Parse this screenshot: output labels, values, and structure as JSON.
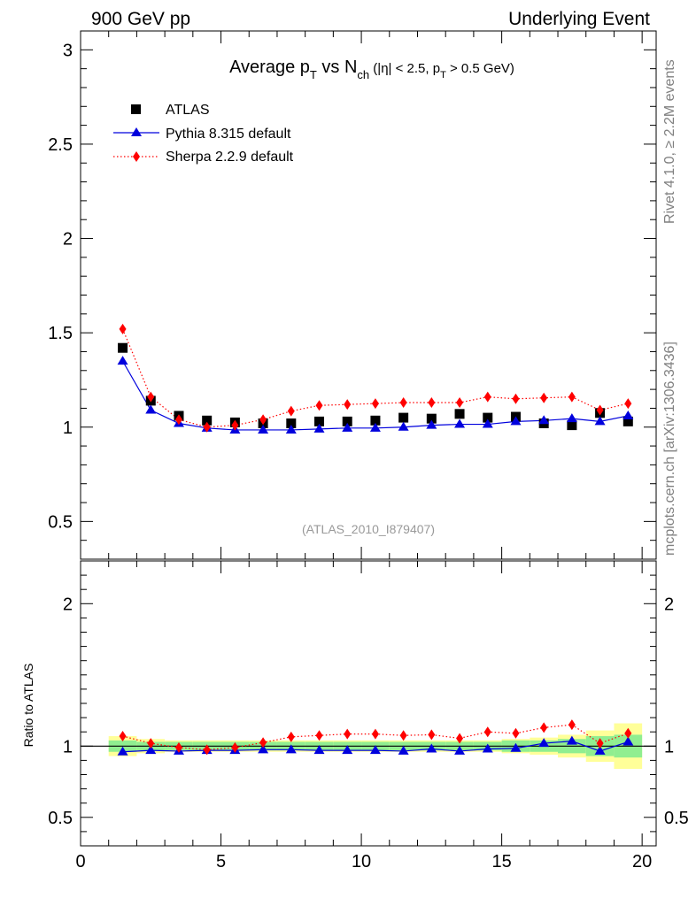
{
  "header": {
    "left": "900 GeV pp",
    "right": "Underlying Event"
  },
  "side_text": {
    "rivet": "Rivet 4.1.0, ≥ 2.2M events",
    "mcplots": "mcplots.cern.ch [arXiv:1306.3436]"
  },
  "title_parts": {
    "t1": "Average p",
    "t1_sub": "T",
    "t2": " vs N",
    "t2_sub": "ch",
    "t3": " (|η| < 2.5, p",
    "t3_sub": "T",
    "t4": " > 0.5 GeV)"
  },
  "analysis_id": "(ATLAS_2010_I879407)",
  "colors": {
    "data": "#000000",
    "pythia": "#0000dd",
    "sherpa": "#ff0000",
    "band_inner": "#90ee90",
    "band_outer": "#ffff99"
  },
  "chart_data": [
    {
      "type": "scatter",
      "panel": "main",
      "xlim": [
        0,
        20.5
      ],
      "ylim": [
        0.3,
        3.1
      ],
      "yticks": [
        0.5,
        1,
        1.5,
        2,
        2.5,
        3
      ],
      "ytick_labels": [
        "0.5",
        "1",
        "1.5",
        "2",
        "2.5",
        "3"
      ],
      "legend_position": "top-left",
      "x": [
        1.5,
        2.5,
        3.5,
        4.5,
        5.5,
        6.5,
        7.5,
        8.5,
        9.5,
        10.5,
        11.5,
        12.5,
        13.5,
        14.5,
        15.5,
        16.5,
        17.5,
        18.5,
        19.5
      ],
      "series": [
        {
          "name": "ATLAS",
          "marker": "square",
          "values": [
            1.42,
            1.14,
            1.06,
            1.035,
            1.025,
            1.02,
            1.02,
            1.03,
            1.03,
            1.035,
            1.05,
            1.045,
            1.07,
            1.05,
            1.055,
            1.02,
            1.01,
            1.075,
            1.03
          ]
        },
        {
          "name": "Pythia 8.315 default",
          "marker": "triangle",
          "values": [
            1.35,
            1.09,
            1.02,
            0.995,
            0.985,
            0.985,
            0.985,
            0.99,
            0.995,
            0.995,
            1.0,
            1.01,
            1.015,
            1.015,
            1.03,
            1.035,
            1.045,
            1.03,
            1.06
          ]
        },
        {
          "name": "Sherpa 2.2.9 default",
          "marker": "diamond",
          "values": [
            1.52,
            1.16,
            1.04,
            1.0,
            1.01,
            1.04,
            1.085,
            1.115,
            1.12,
            1.125,
            1.13,
            1.13,
            1.13,
            1.16,
            1.15,
            1.155,
            1.16,
            1.09,
            1.125
          ]
        }
      ]
    },
    {
      "type": "line",
      "panel": "ratio",
      "ylabel": "Ratio to ATLAS",
      "xlabel": "",
      "xlim": [
        0,
        20.5
      ],
      "ylim": [
        0.3,
        2.3
      ],
      "xticks": [
        0,
        5,
        10,
        15,
        20
      ],
      "xtick_labels": [
        "0",
        "5",
        "10",
        "15",
        "20"
      ],
      "yticks": [
        0.5,
        1,
        2
      ],
      "ytick_labels": [
        "0.5",
        "1",
        "2"
      ],
      "x": [
        1.5,
        2.5,
        3.5,
        4.5,
        5.5,
        6.5,
        7.5,
        8.5,
        9.5,
        10.5,
        11.5,
        12.5,
        13.5,
        14.5,
        15.5,
        16.5,
        17.5,
        18.5,
        19.5
      ],
      "bands": {
        "inner": [
          0.04,
          0.03,
          0.03,
          0.03,
          0.03,
          0.03,
          0.03,
          0.03,
          0.03,
          0.03,
          0.03,
          0.03,
          0.03,
          0.03,
          0.04,
          0.04,
          0.05,
          0.07,
          0.08
        ],
        "outer": [
          0.07,
          0.05,
          0.04,
          0.04,
          0.04,
          0.04,
          0.04,
          0.04,
          0.04,
          0.04,
          0.04,
          0.04,
          0.04,
          0.04,
          0.05,
          0.06,
          0.08,
          0.11,
          0.16
        ]
      },
      "series": [
        {
          "name": "Pythia 8.315 default",
          "values": [
            0.96,
            0.97,
            0.965,
            0.97,
            0.97,
            0.975,
            0.975,
            0.97,
            0.97,
            0.97,
            0.965,
            0.98,
            0.965,
            0.98,
            0.985,
            1.02,
            1.035,
            0.965,
            1.03
          ]
        },
        {
          "name": "Sherpa 2.2.9 default",
          "values": [
            1.07,
            1.02,
            0.99,
            0.975,
            0.99,
            1.025,
            1.065,
            1.075,
            1.085,
            1.085,
            1.075,
            1.08,
            1.055,
            1.1,
            1.09,
            1.13,
            1.15,
            1.02,
            1.09
          ]
        }
      ]
    }
  ]
}
